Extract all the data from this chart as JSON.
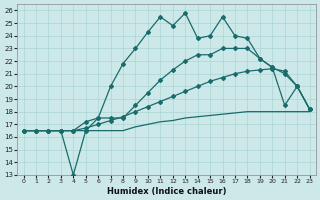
{
  "xlabel": "Humidex (Indice chaleur)",
  "xlim": [
    -0.5,
    23.5
  ],
  "ylim": [
    13,
    26.5
  ],
  "yticks": [
    13,
    14,
    15,
    16,
    17,
    18,
    19,
    20,
    21,
    22,
    23,
    24,
    25,
    26
  ],
  "xticks": [
    0,
    1,
    2,
    3,
    4,
    5,
    6,
    7,
    8,
    9,
    10,
    11,
    12,
    13,
    14,
    15,
    16,
    17,
    18,
    19,
    20,
    21,
    22,
    23
  ],
  "background_color": "#cde8e8",
  "grid_color": "#b0d8d8",
  "line_color": "#1a6b6b",
  "lines": [
    {
      "x": [
        0,
        1,
        2,
        3,
        4,
        5,
        6,
        7,
        8,
        9,
        10,
        11,
        12,
        13,
        14,
        15,
        16,
        17,
        18,
        19,
        20,
        21,
        22,
        23
      ],
      "y": [
        16.5,
        16.5,
        16.5,
        16.5,
        16.5,
        16.5,
        16.5,
        16.5,
        16.5,
        16.8,
        17.0,
        17.2,
        17.3,
        17.5,
        17.6,
        17.7,
        17.8,
        17.9,
        18.0,
        18.0,
        18.0,
        18.0,
        18.0,
        18.0
      ],
      "markers": false
    },
    {
      "x": [
        0,
        1,
        2,
        3,
        4,
        5,
        6,
        7,
        8,
        9,
        10,
        11,
        12,
        13,
        14,
        15,
        16,
        17,
        18,
        19,
        20,
        21,
        22,
        23
      ],
      "y": [
        16.5,
        16.5,
        16.5,
        16.5,
        16.5,
        16.7,
        17.0,
        17.3,
        17.6,
        18.0,
        18.4,
        18.8,
        19.2,
        19.6,
        20.0,
        20.4,
        20.7,
        21.0,
        21.2,
        21.3,
        21.4,
        21.2,
        20.0,
        18.2
      ],
      "markers": true
    },
    {
      "x": [
        0,
        1,
        2,
        3,
        4,
        5,
        6,
        7,
        8,
        9,
        10,
        11,
        12,
        13,
        14,
        15,
        16,
        17,
        18,
        19,
        20,
        21,
        22,
        23
      ],
      "y": [
        16.5,
        16.5,
        16.5,
        16.5,
        16.5,
        17.2,
        17.5,
        17.5,
        17.5,
        18.5,
        19.5,
        20.5,
        21.3,
        22.0,
        22.5,
        22.5,
        23.0,
        23.0,
        23.0,
        22.2,
        21.5,
        21.0,
        20.0,
        18.2
      ],
      "markers": true
    },
    {
      "x": [
        0,
        1,
        2,
        3,
        4,
        5,
        6,
        7,
        8,
        9,
        10,
        11,
        12,
        13,
        14,
        15,
        16,
        17,
        18,
        19,
        20,
        21,
        22,
        23
      ],
      "y": [
        16.5,
        16.5,
        16.5,
        16.5,
        13.0,
        16.5,
        17.5,
        20.0,
        21.8,
        23.0,
        24.3,
        25.5,
        24.8,
        25.8,
        23.8,
        24.0,
        25.5,
        24.0,
        23.8,
        22.2,
        21.5,
        18.5,
        20.0,
        18.2
      ],
      "markers": true
    }
  ]
}
